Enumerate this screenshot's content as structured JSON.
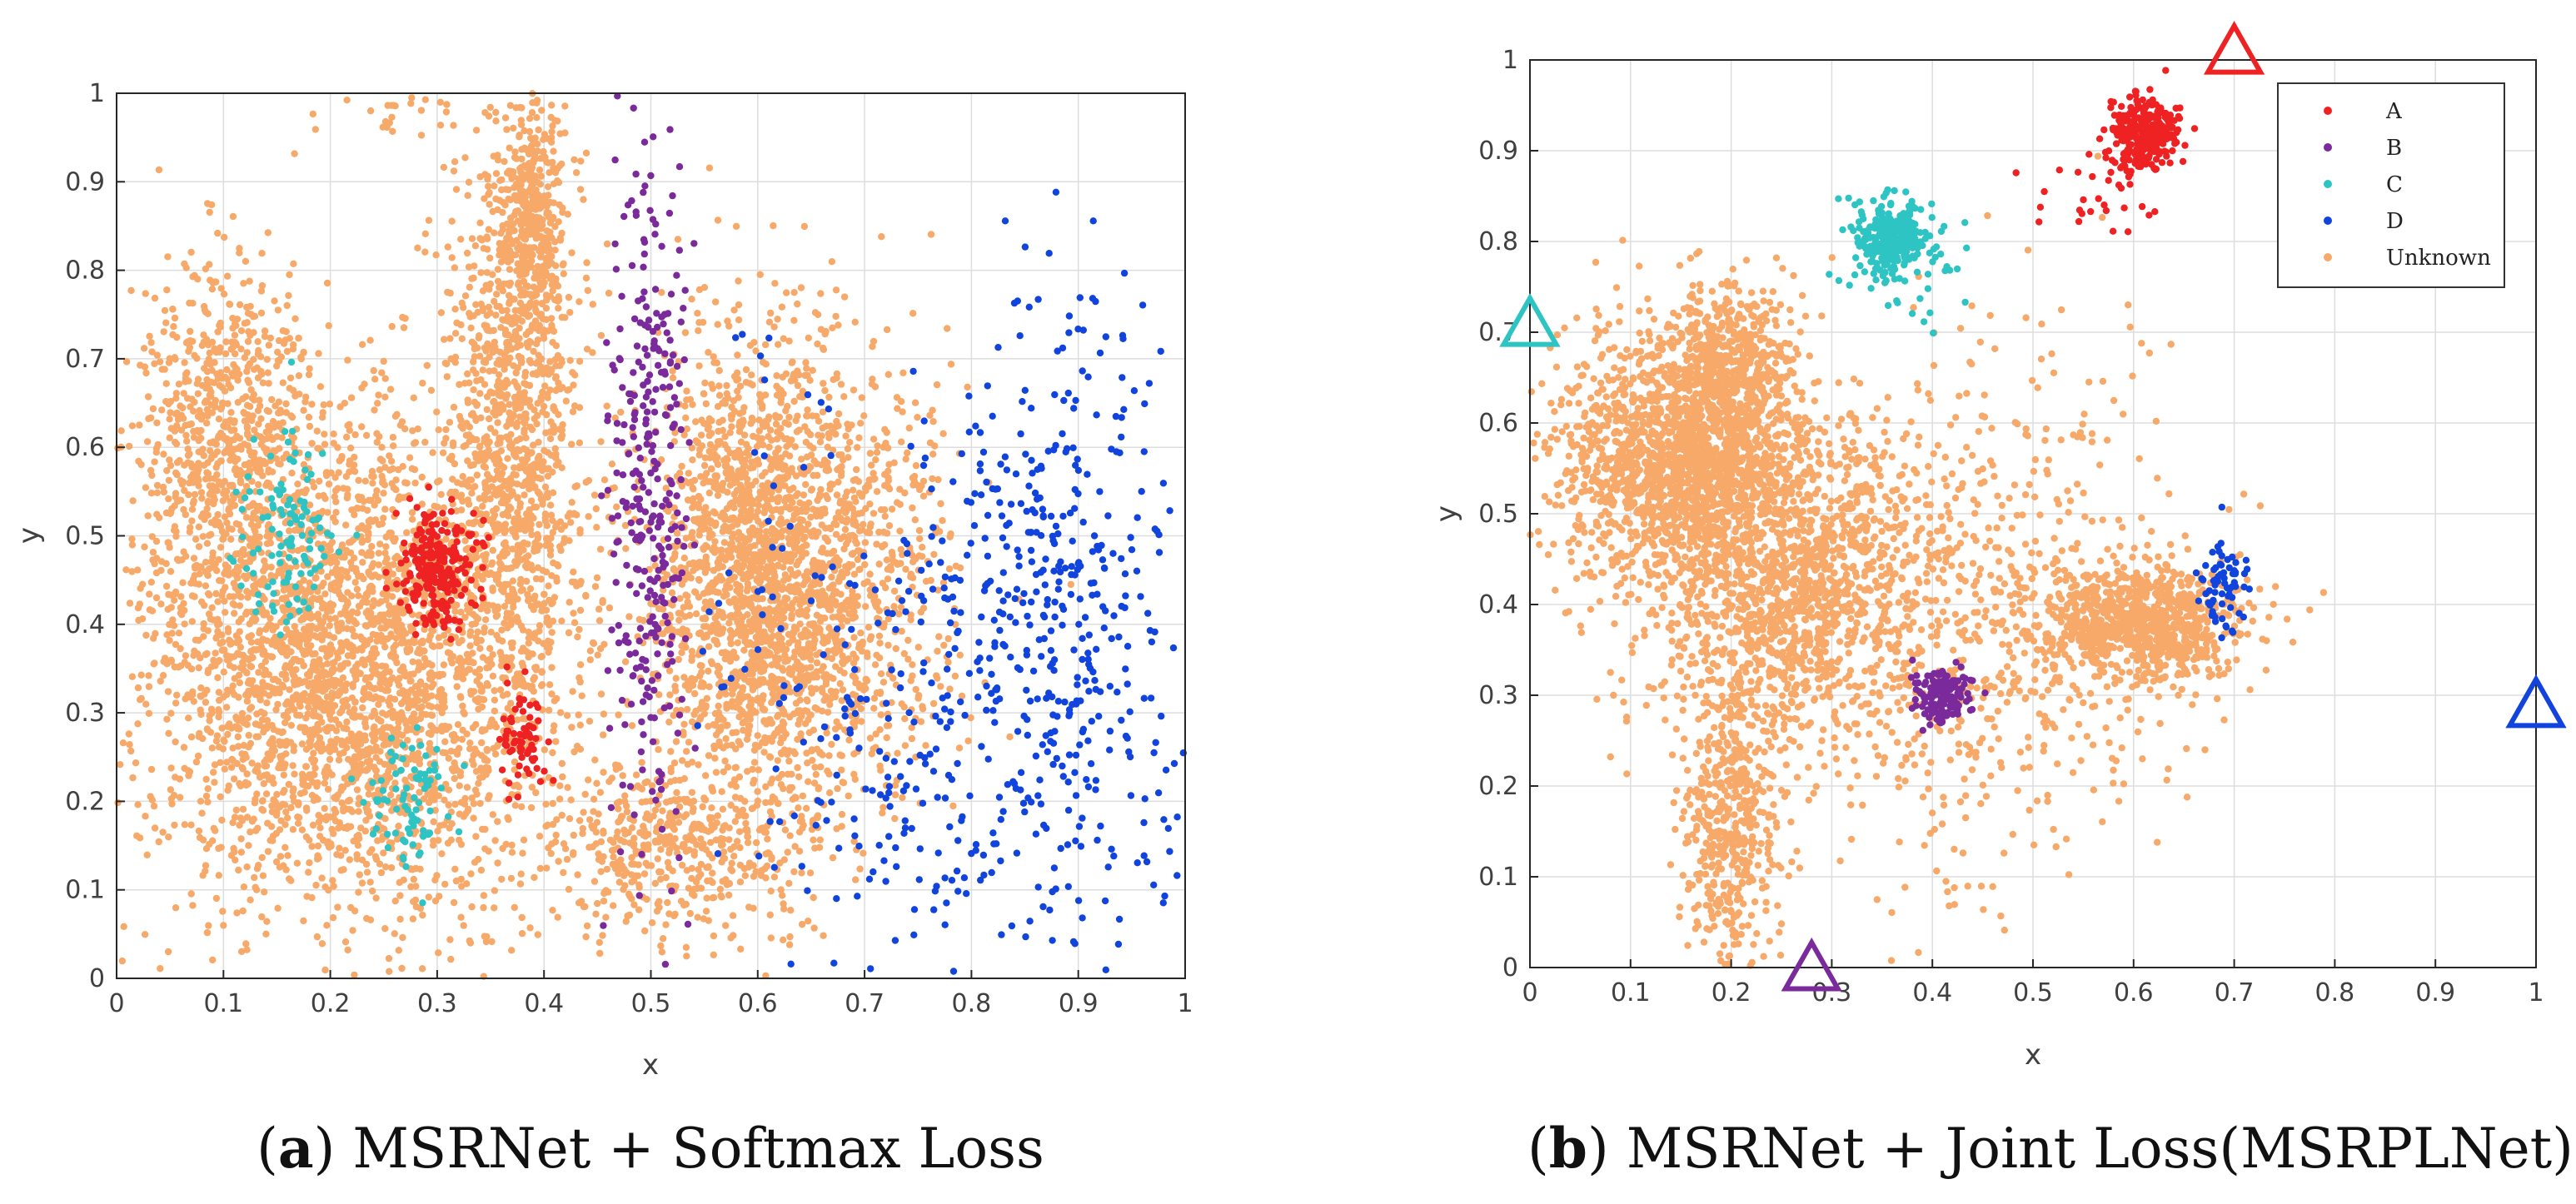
{
  "figure": {
    "panel_a": {
      "caption_letter": "a",
      "caption_text": "MSRNet + Softmax Loss"
    },
    "panel_b": {
      "caption_letter": "b",
      "caption_text": "MSRNet + Joint Loss(MSRPLNet)"
    }
  },
  "colors": {
    "A": "#ee2222",
    "B": "#7b2a9b",
    "C": "#2ec4c4",
    "D": "#1144dd",
    "Unknown": "#f7a96a",
    "grid": "#dddddd",
    "axis": "#262626"
  },
  "chart_data": [
    {
      "type": "scatter",
      "id": "a",
      "title": "",
      "xlabel": "x",
      "ylabel": "y",
      "xlim": [
        0,
        1
      ],
      "ylim": [
        0,
        1
      ],
      "grid": true,
      "xticks": [
        "0",
        "0.1",
        "0.2",
        "0.3",
        "0.4",
        "0.5",
        "0.6",
        "0.7",
        "0.8",
        "0.9",
        "1"
      ],
      "yticks": [
        "0",
        "0.1",
        "0.2",
        "0.3",
        "0.4",
        "0.5",
        "0.6",
        "0.7",
        "0.8",
        "0.9",
        "1"
      ],
      "legend": null,
      "series": [
        {
          "name": "Unknown",
          "clusters": [
            {
              "cx": 0.22,
              "cy": 0.35,
              "sx": 0.1,
              "sy": 0.14,
              "n": 3200
            },
            {
              "cx": 0.1,
              "cy": 0.62,
              "sx": 0.04,
              "sy": 0.1,
              "n": 650
            },
            {
              "cx": 0.37,
              "cy": 0.62,
              "sx": 0.03,
              "sy": 0.16,
              "n": 1100
            },
            {
              "cx": 0.39,
              "cy": 0.85,
              "sx": 0.015,
              "sy": 0.07,
              "n": 380
            },
            {
              "cx": 0.6,
              "cy": 0.45,
              "sx": 0.05,
              "sy": 0.14,
              "n": 2000
            },
            {
              "cx": 0.52,
              "cy": 0.15,
              "sx": 0.06,
              "sy": 0.05,
              "n": 450
            },
            {
              "cx": 0.69,
              "cy": 0.45,
              "sx": 0.05,
              "sy": 0.12,
              "n": 600
            },
            {
              "cx": 0.27,
              "cy": 0.98,
              "sx": 0.03,
              "sy": 0.015,
              "n": 25
            }
          ]
        },
        {
          "name": "A",
          "clusters": [
            {
              "cx": 0.3,
              "cy": 0.46,
              "sx": 0.018,
              "sy": 0.035,
              "n": 240
            },
            {
              "cx": 0.38,
              "cy": 0.27,
              "sx": 0.012,
              "sy": 0.03,
              "n": 70
            }
          ]
        },
        {
          "name": "B",
          "clusters": [
            {
              "cx": 0.5,
              "cy": 0.55,
              "sx": 0.02,
              "sy": 0.2,
              "n": 330
            }
          ]
        },
        {
          "name": "C",
          "clusters": [
            {
              "cx": 0.16,
              "cy": 0.5,
              "sx": 0.025,
              "sy": 0.05,
              "n": 110
            },
            {
              "cx": 0.27,
              "cy": 0.2,
              "sx": 0.02,
              "sy": 0.04,
              "n": 80
            }
          ]
        },
        {
          "name": "D",
          "clusters": [
            {
              "cx": 0.88,
              "cy": 0.4,
              "sx": 0.06,
              "sy": 0.18,
              "n": 480
            },
            {
              "cx": 0.73,
              "cy": 0.25,
              "sx": 0.05,
              "sy": 0.15,
              "n": 160
            },
            {
              "cx": 0.61,
              "cy": 0.4,
              "sx": 0.03,
              "sy": 0.2,
              "n": 40
            }
          ]
        }
      ]
    },
    {
      "type": "scatter",
      "id": "b",
      "title": "",
      "xlabel": "x",
      "ylabel": "y",
      "xlim": [
        0,
        1
      ],
      "ylim": [
        0,
        1
      ],
      "grid": true,
      "xticks": [
        "0",
        "0.1",
        "0.2",
        "0.3",
        "0.4",
        "0.5",
        "0.6",
        "0.7",
        "0.8",
        "0.9",
        "1"
      ],
      "yticks": [
        "0",
        "0.1",
        "0.2",
        "0.3",
        "0.4",
        "0.5",
        "0.6",
        "0.7",
        "0.8",
        "0.9",
        "1"
      ],
      "legend": {
        "position": "top-right",
        "entries": [
          "A",
          "B",
          "C",
          "D",
          "Unknown"
        ]
      },
      "series": [
        {
          "name": "Unknown",
          "clusters": [
            {
              "cx": 0.15,
              "cy": 0.56,
              "sx": 0.06,
              "sy": 0.07,
              "n": 1700
            },
            {
              "cx": 0.26,
              "cy": 0.42,
              "sx": 0.07,
              "sy": 0.09,
              "n": 1400
            },
            {
              "cx": 0.2,
              "cy": 0.15,
              "sx": 0.025,
              "sy": 0.08,
              "n": 450
            },
            {
              "cx": 0.61,
              "cy": 0.38,
              "sx": 0.05,
              "sy": 0.03,
              "n": 900
            },
            {
              "cx": 0.45,
              "cy": 0.4,
              "sx": 0.1,
              "sy": 0.15,
              "n": 700
            },
            {
              "cx": 0.2,
              "cy": 0.67,
              "sx": 0.03,
              "sy": 0.05,
              "n": 450
            }
          ]
        },
        {
          "name": "A",
          "clusters": [
            {
              "cx": 0.615,
              "cy": 0.92,
              "sx": 0.017,
              "sy": 0.02,
              "n": 260
            },
            {
              "cx": 0.57,
              "cy": 0.85,
              "sx": 0.03,
              "sy": 0.03,
              "n": 40
            }
          ]
        },
        {
          "name": "B",
          "clusters": [
            {
              "cx": 0.41,
              "cy": 0.3,
              "sx": 0.015,
              "sy": 0.015,
              "n": 140
            }
          ]
        },
        {
          "name": "C",
          "clusters": [
            {
              "cx": 0.36,
              "cy": 0.805,
              "sx": 0.017,
              "sy": 0.02,
              "n": 300
            },
            {
              "cx": 0.38,
              "cy": 0.78,
              "sx": 0.04,
              "sy": 0.03,
              "n": 40
            }
          ]
        },
        {
          "name": "D",
          "clusters": [
            {
              "cx": 0.69,
              "cy": 0.42,
              "sx": 0.012,
              "sy": 0.03,
              "n": 70
            }
          ]
        }
      ],
      "prototypes": [
        {
          "class": "A",
          "x": 0.7,
          "y": 1.01
        },
        {
          "class": "B",
          "x": 0.28,
          "y": 0.0
        },
        {
          "class": "C",
          "x": 0.0,
          "y": 0.71
        },
        {
          "class": "D",
          "x": 1.0,
          "y": 0.29
        }
      ]
    }
  ]
}
